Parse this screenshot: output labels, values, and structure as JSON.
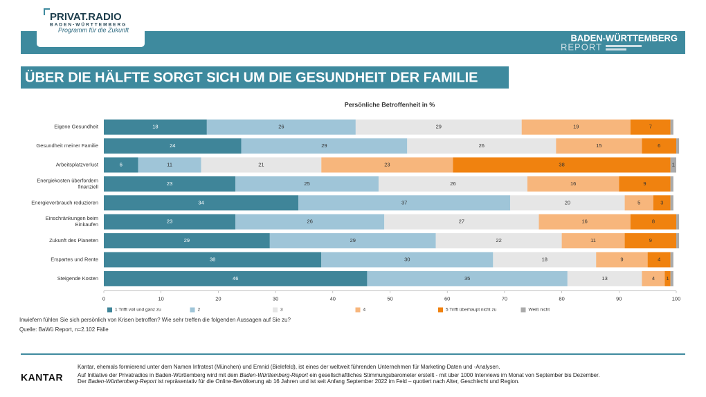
{
  "header": {
    "logo_name": "PRIVAT.RADIO",
    "logo_region": "BADEN-WÜRTTEMBERG",
    "logo_slogan": "Programm für die Zukunft",
    "report_title": "BADEN-WÜRTTEMBERG",
    "report_sub": "REPORT"
  },
  "headline": "ÜBER DIE HÄLFTE SORGT SICH UM DIE GESUNDHEIT DER FAMILIE",
  "chart_data": {
    "type": "bar",
    "orientation": "horizontal",
    "stacked": true,
    "title": "Persönliche Betroffenheit in %",
    "categories": [
      "Eigene Gesundheit",
      "Gesundheit meiner Familie",
      "Arbeitsplatzverlust",
      "Energiekosten überfordern finanziell",
      "Energieverbrauch reduzieren",
      "Einschränkungen beim Einkaufen",
      "Zukunft des Planeten",
      "Erspartes und Rente",
      "Steigende Kosten"
    ],
    "series": [
      {
        "name": "1 Trifft voll und ganz zu",
        "color": "#3f8599",
        "label_color": "#ffffff",
        "values": [
          18,
          24,
          6,
          23,
          34,
          23,
          29,
          38,
          46
        ]
      },
      {
        "name": "2",
        "color": "#9fc5d8",
        "label_color": "#333333",
        "values": [
          26,
          29,
          11,
          25,
          37,
          26,
          29,
          30,
          35
        ]
      },
      {
        "name": "3",
        "color": "#e6e6e6",
        "label_color": "#333333",
        "values": [
          29,
          26,
          21,
          26,
          20,
          27,
          22,
          18,
          13
        ]
      },
      {
        "name": "4",
        "color": "#f7b67c",
        "label_color": "#333333",
        "values": [
          19,
          15,
          23,
          16,
          5,
          16,
          11,
          9,
          4
        ]
      },
      {
        "name": "5 Trifft überhaupt nicht zu",
        "color": "#f0820f",
        "label_color": "#333333",
        "values": [
          7,
          6,
          38,
          9,
          3,
          8,
          9,
          4,
          1
        ]
      },
      {
        "name": "Weiß nicht",
        "color": "#aaaaaa",
        "label_color": "#333333",
        "values": [
          0.5,
          0.5,
          1,
          0.5,
          0.5,
          0.5,
          0.5,
          0.5,
          0.5
        ]
      }
    ],
    "xlim": [
      0,
      100
    ],
    "xticks": [
      0,
      10,
      20,
      30,
      40,
      50,
      60,
      70,
      80,
      90,
      100
    ],
    "note": "Inwiefern fühlen Sie sich persönlich von Krisen betroffen? Wie sehr treffen die folgenden Aussagen auf Sie zu?",
    "source": "Quelle: BaWü Report, n=2.102 Fälle"
  },
  "footer": {
    "brand": "KANTAR",
    "lines": [
      [
        "Kantar, ehemals formierend unter dem Namen Infratest (München) und Emnid (Bielefeld), ist eines der weltweit führenden Unternehmen für Marketing-Daten und -Analysen."
      ],
      [
        "Auf Initiative der Privatradios in Baden-Württemberg wird mit dem ",
        "Baden-Württemberg-Report",
        " ein gesellschaftliches Stimmungsbarometer erstellt - mit über 1000 Interviews im Monat von September bis Dezember."
      ],
      [
        "Der ",
        "Baden-Württemberg-Report",
        " ist repräsentativ für die Online-Bevölkerung ab 16 Jahren und ist seit Anfang September 2022 im Feld – quotiert nach Alter, Geschlecht und Region."
      ]
    ]
  }
}
